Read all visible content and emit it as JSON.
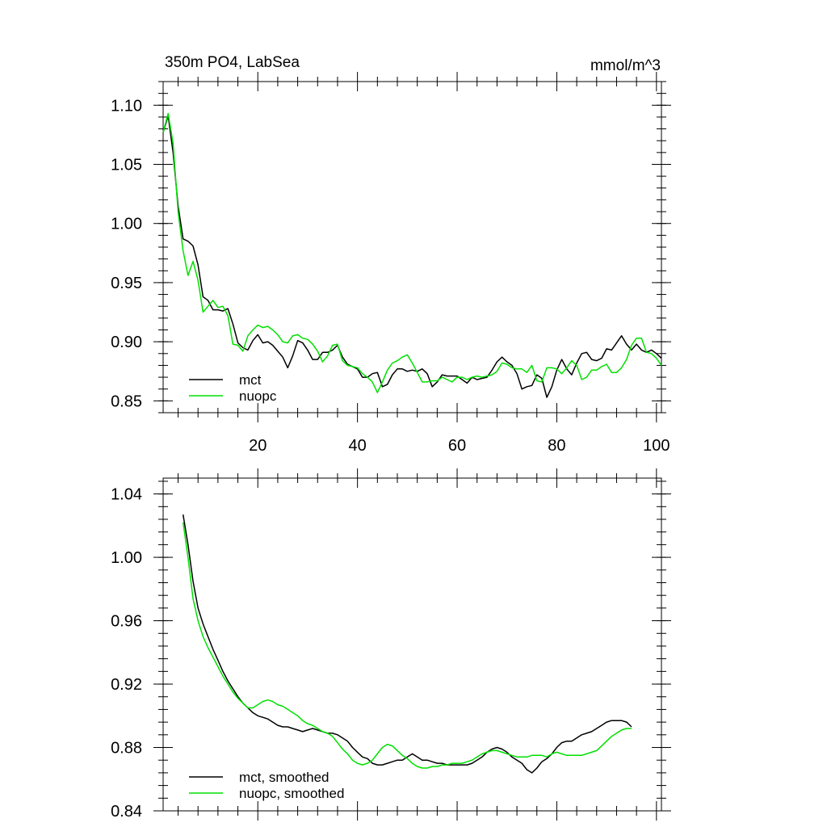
{
  "colors": {
    "mct": "#000000",
    "nuopc": "#00e000"
  },
  "chart_data": [
    {
      "type": "line",
      "title": "350m PO4, LabSea",
      "units": "mmol/m^3",
      "xlim": [
        1,
        101
      ],
      "ylim": [
        0.84,
        1.12
      ],
      "xticks": [
        20,
        40,
        60,
        80,
        100
      ],
      "yticks": [
        0.85,
        0.9,
        0.95,
        1.0,
        1.05,
        1.1
      ],
      "ytick_labels": [
        "0.85",
        "0.90",
        "0.95",
        "1.00",
        "1.05",
        "1.10"
      ],
      "xtick_labels": [
        "20",
        "40",
        "60",
        "80",
        "100"
      ],
      "legend_position": "bottom-left",
      "series": [
        {
          "name": "mct",
          "color": "#000000",
          "x_start": 1,
          "values": [
            1.077,
            1.091,
            1.06,
            1.015,
            0.987,
            0.985,
            0.981,
            0.965,
            0.938,
            0.935,
            0.927,
            0.927,
            0.926,
            0.928,
            0.915,
            0.899,
            0.895,
            0.893,
            0.901,
            0.906,
            0.899,
            0.9,
            0.897,
            0.892,
            0.887,
            0.878,
            0.888,
            0.901,
            0.899,
            0.893,
            0.885,
            0.885,
            0.891,
            0.891,
            0.893,
            0.897,
            0.887,
            0.881,
            0.879,
            0.877,
            0.87,
            0.87,
            0.873,
            0.874,
            0.862,
            0.864,
            0.872,
            0.877,
            0.877,
            0.875,
            0.876,
            0.875,
            0.877,
            0.873,
            0.862,
            0.866,
            0.872,
            0.871,
            0.871,
            0.871,
            0.868,
            0.865,
            0.87,
            0.868,
            0.869,
            0.87,
            0.876,
            0.883,
            0.887,
            0.883,
            0.88,
            0.873,
            0.86,
            0.862,
            0.863,
            0.872,
            0.869,
            0.853,
            0.862,
            0.876,
            0.885,
            0.877,
            0.872,
            0.882,
            0.89,
            0.891,
            0.885,
            0.884,
            0.886,
            0.894,
            0.893,
            0.899,
            0.905,
            0.898,
            0.893,
            0.898,
            0.893,
            0.891,
            0.893,
            0.89,
            0.886
          ]
        },
        {
          "name": "nuopc",
          "color": "#00e000",
          "x_start": 1,
          "values": [
            1.077,
            1.093,
            1.068,
            1.01,
            0.977,
            0.956,
            0.968,
            0.952,
            0.925,
            0.93,
            0.935,
            0.929,
            0.93,
            0.922,
            0.898,
            0.897,
            0.892,
            0.905,
            0.91,
            0.914,
            0.912,
            0.913,
            0.91,
            0.906,
            0.9,
            0.899,
            0.905,
            0.906,
            0.903,
            0.902,
            0.898,
            0.892,
            0.883,
            0.888,
            0.897,
            0.898,
            0.884,
            0.88,
            0.879,
            0.878,
            0.873,
            0.87,
            0.866,
            0.857,
            0.866,
            0.876,
            0.882,
            0.884,
            0.887,
            0.889,
            0.882,
            0.874,
            0.866,
            0.866,
            0.867,
            0.867,
            0.87,
            0.868,
            0.866,
            0.87,
            0.87,
            0.868,
            0.87,
            0.871,
            0.87,
            0.871,
            0.872,
            0.875,
            0.882,
            0.881,
            0.878,
            0.877,
            0.877,
            0.874,
            0.88,
            0.867,
            0.866,
            0.878,
            0.878,
            0.877,
            0.873,
            0.878,
            0.884,
            0.88,
            0.868,
            0.87,
            0.876,
            0.876,
            0.879,
            0.881,
            0.874,
            0.874,
            0.878,
            0.885,
            0.897,
            0.903,
            0.903,
            0.891,
            0.89,
            0.886,
            0.88
          ]
        }
      ]
    },
    {
      "type": "line",
      "title": "",
      "xlim": [
        1,
        101
      ],
      "ylim": [
        0.84,
        1.05
      ],
      "xticks": [
        20,
        40,
        60,
        80,
        100
      ],
      "yticks": [
        0.84,
        0.88,
        0.92,
        0.96,
        1.0,
        1.04
      ],
      "ytick_labels": [
        "0.84",
        "0.88",
        "0.92",
        "0.96",
        "1.00",
        "1.04"
      ],
      "legend_position": "bottom-left",
      "series": [
        {
          "name": "mct, smoothed",
          "color": "#000000",
          "x_start": 5,
          "values": [
            1.027,
            1.008,
            0.985,
            0.968,
            0.958,
            0.95,
            0.942,
            0.935,
            0.928,
            0.922,
            0.917,
            0.912,
            0.908,
            0.905,
            0.902,
            0.9,
            0.899,
            0.898,
            0.896,
            0.894,
            0.893,
            0.893,
            0.892,
            0.891,
            0.89,
            0.891,
            0.892,
            0.891,
            0.89,
            0.889,
            0.889,
            0.888,
            0.886,
            0.884,
            0.88,
            0.877,
            0.874,
            0.873,
            0.87,
            0.869,
            0.869,
            0.87,
            0.871,
            0.872,
            0.872,
            0.874,
            0.876,
            0.874,
            0.872,
            0.872,
            0.871,
            0.87,
            0.87,
            0.869,
            0.869,
            0.869,
            0.869,
            0.869,
            0.87,
            0.872,
            0.874,
            0.877,
            0.879,
            0.88,
            0.879,
            0.877,
            0.874,
            0.872,
            0.87,
            0.866,
            0.864,
            0.867,
            0.871,
            0.873,
            0.876,
            0.88,
            0.883,
            0.884,
            0.884,
            0.886,
            0.888,
            0.889,
            0.89,
            0.892,
            0.894,
            0.896,
            0.897,
            0.897,
            0.897,
            0.896,
            0.893
          ]
        },
        {
          "name": "nuopc, smoothed",
          "color": "#00e000",
          "x_start": 5,
          "values": [
            1.022,
            1.0,
            0.974,
            0.96,
            0.95,
            0.943,
            0.937,
            0.931,
            0.925,
            0.92,
            0.915,
            0.911,
            0.908,
            0.905,
            0.905,
            0.907,
            0.909,
            0.91,
            0.909,
            0.907,
            0.906,
            0.904,
            0.902,
            0.9,
            0.897,
            0.895,
            0.894,
            0.892,
            0.89,
            0.889,
            0.887,
            0.883,
            0.879,
            0.876,
            0.872,
            0.87,
            0.869,
            0.87,
            0.872,
            0.876,
            0.88,
            0.882,
            0.881,
            0.878,
            0.875,
            0.873,
            0.87,
            0.868,
            0.867,
            0.867,
            0.868,
            0.868,
            0.869,
            0.869,
            0.87,
            0.87,
            0.87,
            0.871,
            0.872,
            0.874,
            0.876,
            0.877,
            0.878,
            0.878,
            0.877,
            0.876,
            0.875,
            0.874,
            0.874,
            0.874,
            0.875,
            0.875,
            0.875,
            0.874,
            0.876,
            0.877,
            0.876,
            0.875,
            0.875,
            0.875,
            0.875,
            0.876,
            0.877,
            0.878,
            0.881,
            0.884,
            0.887,
            0.889,
            0.891,
            0.892,
            0.892
          ]
        }
      ]
    }
  ]
}
